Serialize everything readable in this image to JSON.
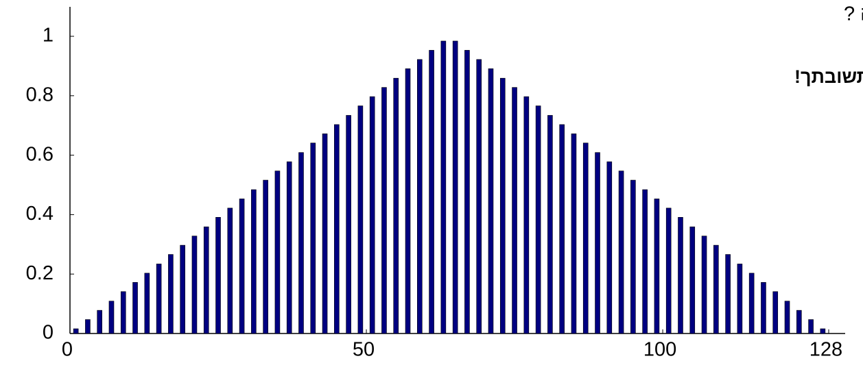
{
  "chart_data": {
    "type": "bar",
    "annotations": [
      "מהו טרנספורם הפורייה של התמונה ?",
      "הסבר תשובתך!"
    ],
    "x": [
      1,
      3,
      5,
      7,
      9,
      11,
      13,
      15,
      17,
      19,
      21,
      23,
      25,
      27,
      29,
      31,
      33,
      35,
      37,
      39,
      41,
      43,
      45,
      47,
      49,
      51,
      53,
      55,
      57,
      59,
      61,
      63,
      65,
      67,
      69,
      71,
      73,
      75,
      77,
      79,
      81,
      83,
      85,
      87,
      89,
      91,
      93,
      95,
      97,
      99,
      101,
      103,
      105,
      107,
      109,
      111,
      113,
      115,
      117,
      119,
      121,
      123,
      125,
      127
    ],
    "values": [
      0.016,
      0.047,
      0.078,
      0.109,
      0.141,
      0.172,
      0.203,
      0.234,
      0.266,
      0.297,
      0.328,
      0.359,
      0.391,
      0.422,
      0.453,
      0.484,
      0.516,
      0.547,
      0.578,
      0.609,
      0.641,
      0.672,
      0.703,
      0.734,
      0.766,
      0.797,
      0.828,
      0.859,
      0.891,
      0.922,
      0.953,
      0.984,
      0.984,
      0.953,
      0.922,
      0.891,
      0.859,
      0.828,
      0.797,
      0.766,
      0.734,
      0.703,
      0.672,
      0.641,
      0.609,
      0.578,
      0.547,
      0.516,
      0.484,
      0.453,
      0.422,
      0.391,
      0.359,
      0.328,
      0.297,
      0.266,
      0.234,
      0.203,
      0.172,
      0.141,
      0.109,
      0.078,
      0.047,
      0.016
    ],
    "color": "#000080",
    "xlim": [
      0,
      128
    ],
    "xticks": [
      0,
      50,
      100,
      128
    ],
    "ylim": [
      0,
      1
    ],
    "yticks": [
      0,
      0.2,
      0.4,
      0.6,
      0.8,
      1
    ],
    "grid": false
  }
}
